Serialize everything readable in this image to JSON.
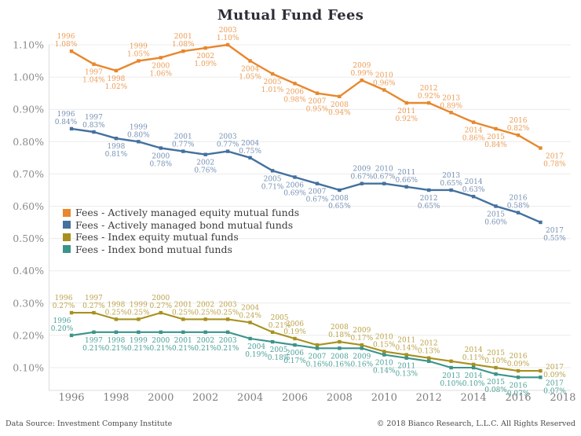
{
  "footer": {
    "source": "Data Source: Investment Company Institute",
    "copyright": "© 2018 Bianco Research, L.L.C. All Rights Reserved"
  },
  "chart_data": {
    "type": "line",
    "title": "Mutual Fund Fees",
    "x": [
      1996,
      1997,
      1998,
      1999,
      2000,
      2001,
      2002,
      2003,
      2004,
      2005,
      2006,
      2007,
      2008,
      2009,
      2010,
      2011,
      2012,
      2013,
      2014,
      2015,
      2016,
      2017
    ],
    "xticks": [
      1996,
      1998,
      2000,
      2002,
      2004,
      2006,
      2008,
      2010,
      2012,
      2014,
      2016,
      2018
    ],
    "yticks": [
      1.1,
      1.0,
      0.9,
      0.8,
      0.7,
      0.6,
      0.5,
      0.4,
      0.3,
      0.2,
      0.1
    ],
    "ylim": [
      0.1,
      1.1
    ],
    "xlim": [
      1996,
      2018
    ],
    "grid": "horizontal",
    "legend_position": "middle-left",
    "axis_color": "#dcdcdc",
    "grid_color": "#ebebeb",
    "series": [
      {
        "key": "active-equity",
        "name": "Fees - Actively managed equity mutual funds",
        "color": "#e8872d",
        "label_color": "#ec9c55",
        "width": 2.4,
        "values": [
          1.08,
          1.04,
          1.02,
          1.05,
          1.06,
          1.08,
          1.09,
          1.1,
          1.05,
          1.01,
          0.98,
          0.95,
          0.94,
          0.99,
          0.96,
          0.92,
          0.92,
          0.89,
          0.86,
          0.84,
          0.82,
          0.78
        ],
        "label_sides": [
          "a",
          "b",
          "b",
          "a",
          "b",
          "a",
          "b",
          "a",
          "b",
          "b",
          "b",
          "b",
          "b",
          "a",
          "a",
          "b",
          "a",
          "a",
          "b",
          "b",
          "a",
          "b"
        ],
        "label_dx": {
          "0": -7,
          "21": 18
        }
      },
      {
        "key": "active-bond",
        "name": "Fees - Actively managed bond mutual funds",
        "color": "#44719e",
        "label_color": "#7590b3",
        "width": 2.4,
        "values": [
          0.84,
          0.83,
          0.81,
          0.8,
          0.78,
          0.77,
          0.76,
          0.77,
          0.75,
          0.71,
          0.69,
          0.67,
          0.65,
          0.67,
          0.67,
          0.66,
          0.65,
          0.65,
          0.63,
          0.6,
          0.58,
          0.55
        ],
        "label_sides": [
          "a",
          "a",
          "b",
          "a",
          "b",
          "a",
          "b",
          "a",
          "a",
          "b",
          "b",
          "b",
          "b",
          "a",
          "a",
          "a",
          "b",
          "a",
          "a",
          "b",
          "a",
          "b"
        ],
        "label_dx": {
          "0": -7,
          "21": 18
        }
      },
      {
        "key": "index-equity",
        "name": "Fees - Index equity mutual funds",
        "color": "#a8901f",
        "label_color": "#bca24a",
        "width": 2.1,
        "values": [
          0.27,
          0.27,
          0.25,
          0.25,
          0.27,
          0.25,
          0.25,
          0.25,
          0.24,
          0.21,
          0.19,
          0.17,
          0.18,
          0.17,
          0.15,
          0.14,
          0.13,
          0.12,
          0.11,
          0.1,
          0.09,
          0.09
        ],
        "label_sides": [
          "a",
          "a",
          "a",
          "a",
          "a",
          "a",
          "a",
          "a",
          "a",
          "a",
          "a",
          "n",
          "a",
          "a",
          "a",
          "a",
          "a",
          "n",
          "a",
          "a",
          "a",
          "b"
        ],
        "label_dx": {
          "0": -10,
          "9": 9,
          "21": 18
        },
        "label_dy": {
          "21": -15
        }
      },
      {
        "key": "index-bond",
        "name": "Fees - Index bond mutual funds",
        "color": "#3a948a",
        "label_color": "#4ba198",
        "width": 2.1,
        "values": [
          0.2,
          0.21,
          0.21,
          0.21,
          0.21,
          0.21,
          0.21,
          0.21,
          0.19,
          0.18,
          0.17,
          0.16,
          0.16,
          0.16,
          0.14,
          0.13,
          0.12,
          0.1,
          0.1,
          0.08,
          0.07,
          0.07
        ],
        "label_sides": [
          "a",
          "b",
          "b",
          "b",
          "b",
          "b",
          "b",
          "b",
          "b",
          "b",
          "b",
          "b",
          "b",
          "b",
          "b",
          "b",
          "n",
          "b",
          "b",
          "b",
          "b",
          "b"
        ],
        "label_dx": {
          "0": -12,
          "8": 8,
          "9": 8,
          "21": 18
        },
        "label_dy": {
          "21": -3
        }
      }
    ]
  }
}
